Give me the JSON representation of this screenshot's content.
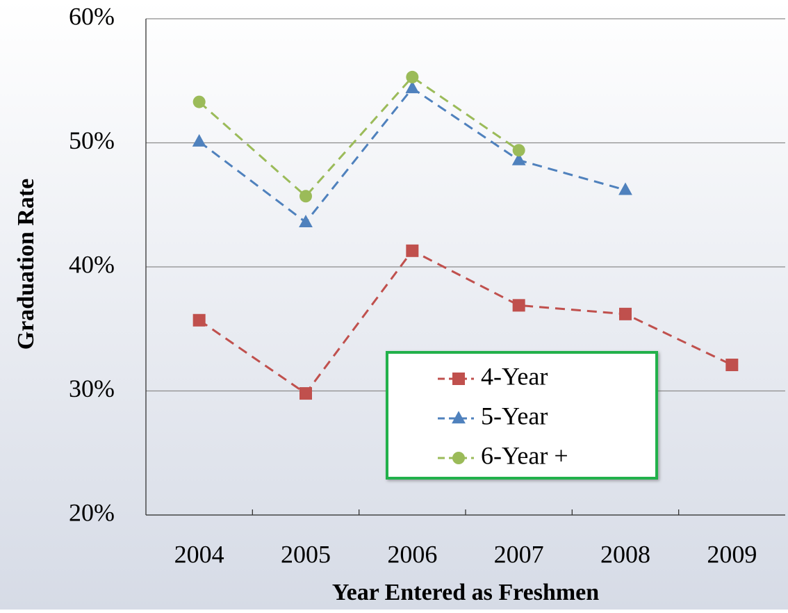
{
  "chart_data": {
    "type": "line",
    "categories": [
      "2004",
      "2005",
      "2006",
      "2007",
      "2008",
      "2009"
    ],
    "series": [
      {
        "name": "4-Year",
        "color": "#c0504d",
        "marker": "square",
        "values": [
          35.7,
          29.8,
          41.3,
          36.9,
          36.2,
          32.1
        ]
      },
      {
        "name": "5-Year",
        "color": "#4f81bd",
        "marker": "triangle",
        "values": [
          50.1,
          43.6,
          54.4,
          48.6,
          46.2,
          null
        ]
      },
      {
        "name": "6-Year +",
        "color": "#9bbb59",
        "marker": "circle",
        "values": [
          53.3,
          45.7,
          55.3,
          49.4,
          null,
          null
        ]
      }
    ],
    "ylabel": "Graduation Rate",
    "xlabel": "Year Entered as Freshmen",
    "ylim": [
      20,
      60
    ],
    "yticks": [
      {
        "value": 20,
        "label": "20%"
      },
      {
        "value": 30,
        "label": "30%"
      },
      {
        "value": 40,
        "label": "40%"
      },
      {
        "value": 50,
        "label": "50%"
      },
      {
        "value": 60,
        "label": "60%"
      }
    ],
    "grid": true,
    "dashed": true
  }
}
